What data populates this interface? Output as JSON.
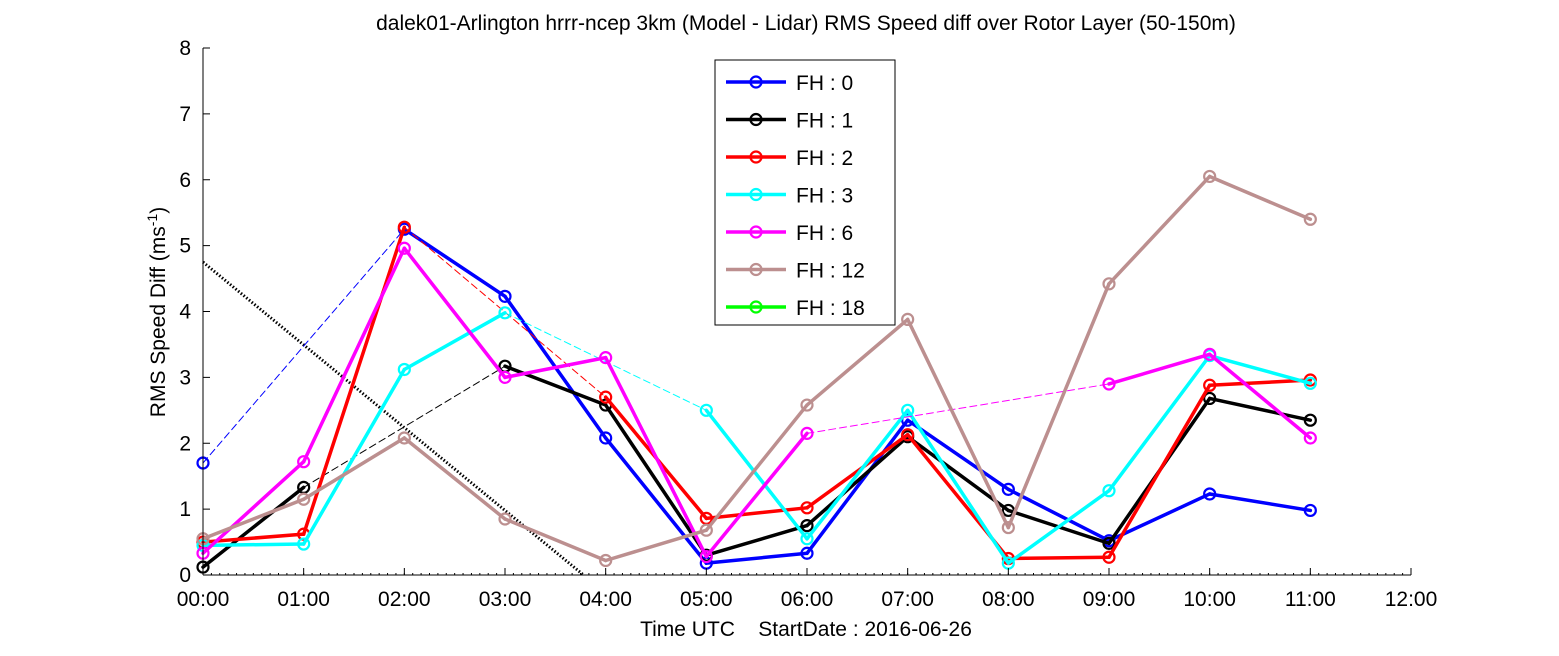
{
  "chart_data": {
    "type": "line",
    "title": "dalek01-Arlington hrrr-ncep 3km (Model - Lidar) RMS Speed diff over Rotor Layer (50-150m)",
    "xlabel": "Time UTC    StartDate : 2016-06-26",
    "ylabel_main": "RMS Speed Diff (ms",
    "ylabel_sup": "-1",
    "ylabel_close": ")",
    "xlim": [
      0,
      12
    ],
    "ylim": [
      0,
      8
    ],
    "x_ticks": [
      0,
      1,
      2,
      3,
      4,
      5,
      6,
      7,
      8,
      9,
      10,
      11,
      12
    ],
    "x_tick_labels": [
      "00:00",
      "01:00",
      "02:00",
      "03:00",
      "04:00",
      "05:00",
      "06:00",
      "07:00",
      "08:00",
      "09:00",
      "10:00",
      "11:00",
      "12:00"
    ],
    "y_ticks": [
      0,
      1,
      2,
      3,
      4,
      5,
      6,
      7,
      8
    ],
    "y_tick_labels": [
      "0",
      "1",
      "2",
      "3",
      "4",
      "5",
      "6",
      "7",
      "8"
    ],
    "grid": false,
    "legend_position": "top-center",
    "series": [
      {
        "name": "FH : 0",
        "color": "#0000ff",
        "x": [
          0,
          2,
          3,
          4,
          5,
          6,
          7,
          8,
          9,
          10,
          11
        ],
        "y": [
          1.7,
          5.25,
          4.23,
          2.08,
          0.18,
          0.33,
          2.35,
          1.3,
          0.52,
          1.23,
          0.98
        ],
        "dashed_segments": [
          [
            0,
            1
          ]
        ]
      },
      {
        "name": "FH : 1",
        "color": "#000000",
        "x": [
          0,
          1,
          3,
          4,
          5,
          6,
          7,
          8,
          9,
          10,
          11
        ],
        "y": [
          0.12,
          1.33,
          3.17,
          2.58,
          0.3,
          0.75,
          2.1,
          0.98,
          0.48,
          2.68,
          2.35
        ],
        "dashed_segments": [
          [
            1,
            2
          ]
        ]
      },
      {
        "name": "FH : 2",
        "color": "#ff0000",
        "x": [
          0,
          1,
          2,
          4,
          5,
          6,
          7,
          8,
          9,
          10,
          11
        ],
        "y": [
          0.5,
          0.62,
          5.28,
          2.7,
          0.86,
          1.02,
          2.13,
          0.25,
          0.27,
          2.88,
          2.96
        ],
        "dashed_segments": [
          [
            2,
            3
          ]
        ]
      },
      {
        "name": "FH : 3",
        "color": "#00ffff",
        "x": [
          0,
          1,
          2,
          3,
          5,
          6,
          7,
          8,
          9,
          10,
          11
        ],
        "y": [
          0.45,
          0.47,
          3.12,
          3.98,
          2.5,
          0.55,
          2.5,
          0.18,
          1.28,
          3.33,
          2.91
        ],
        "dashed_segments": [
          [
            3,
            4
          ]
        ]
      },
      {
        "name": "FH : 6",
        "color": "#ff00ff",
        "x": [
          0,
          1,
          2,
          3,
          4,
          5,
          6,
          9,
          10,
          11
        ],
        "y": [
          0.33,
          1.72,
          4.96,
          3.0,
          3.3,
          0.28,
          2.15,
          2.9,
          3.35,
          2.08
        ],
        "dashed_segments": [
          [
            6,
            7
          ]
        ]
      },
      {
        "name": "FH : 12",
        "color": "#bc8f8f",
        "x": [
          0,
          1,
          2,
          3,
          4,
          5,
          6,
          7,
          8,
          9,
          10,
          11
        ],
        "y": [
          0.55,
          1.15,
          2.08,
          0.85,
          0.22,
          0.68,
          2.58,
          3.88,
          0.72,
          4.42,
          6.05,
          5.4
        ],
        "dashed_segments": []
      },
      {
        "name": "FH : 18",
        "color": "#00ff00",
        "x": [],
        "y": [],
        "dashed_segments": []
      }
    ],
    "reference_line": {
      "style": "dotted",
      "color": "#000000",
      "x": [
        0,
        3.78
      ],
      "y": [
        4.75,
        0
      ]
    }
  }
}
